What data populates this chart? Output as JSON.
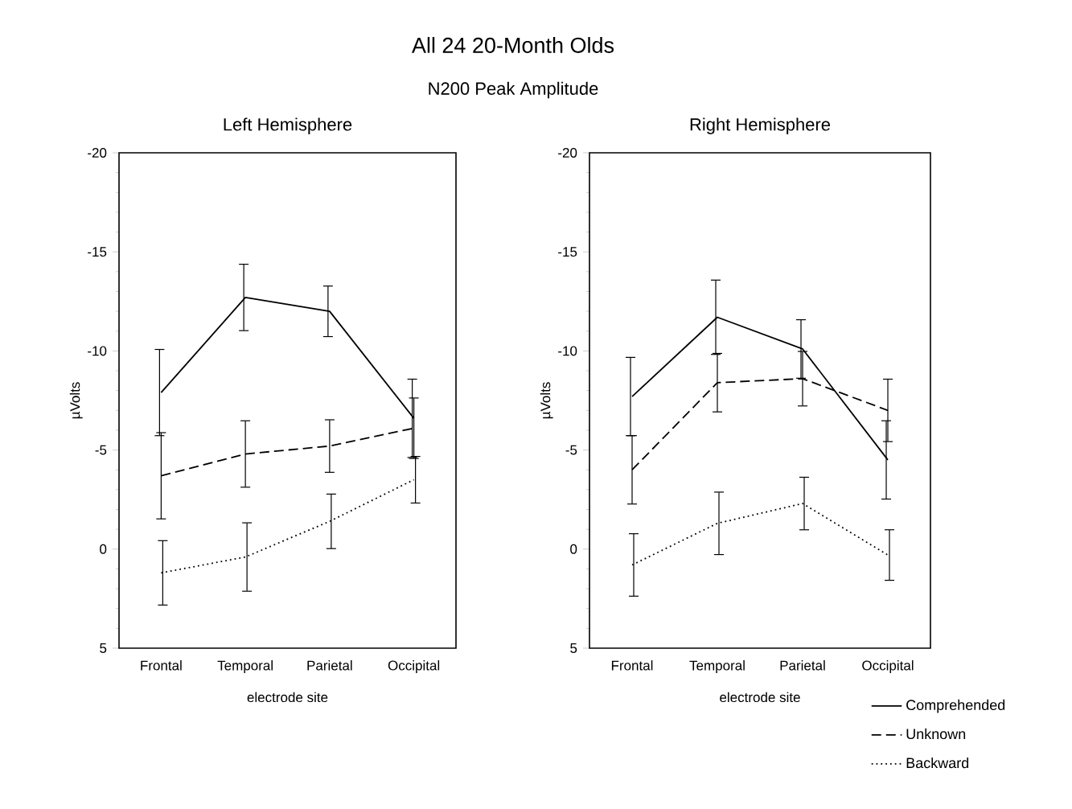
{
  "chart_data": [
    {
      "type": "line",
      "title": "Left Hemisphere",
      "annotations": [
        "All 24 20-Month Olds",
        "N200 Peak Amplitude"
      ],
      "xlabel": "electrode site",
      "ylabel": "µVolts",
      "categories": [
        "Frontal",
        "Temporal",
        "Parietal",
        "Occipital"
      ],
      "ylim": [
        5,
        -20
      ],
      "yticks": [
        -20,
        -15,
        -10,
        -5,
        0,
        5
      ],
      "marker": "none",
      "series": [
        {
          "color": "#000000",
          "line_style": "solid",
          "values": [
            -7.9,
            -12.7,
            -12.0,
            -6.6
          ],
          "errors": [
            2.2,
            1.7,
            1.3,
            2.0
          ]
        },
        {
          "color": "#000000",
          "line_style": "dashed",
          "values": [
            -3.7,
            -4.8,
            -5.2,
            -6.1
          ],
          "errors": [
            2.2,
            1.7,
            1.35,
            1.55
          ]
        },
        {
          "color": "#000000",
          "line_style": "dotted",
          "values": [
            1.2,
            0.4,
            -1.4,
            -3.5
          ],
          "errors": [
            1.65,
            1.75,
            1.4,
            1.2
          ]
        }
      ]
    },
    {
      "type": "line",
      "title": "Right Hemisphere",
      "xlabel": "electrode site",
      "ylabel": "µVolts",
      "categories": [
        "Frontal",
        "Temporal",
        "Parietal",
        "Occipital"
      ],
      "ylim": [
        5,
        -20
      ],
      "yticks": [
        -20,
        -15,
        -10,
        -5,
        0,
        5
      ],
      "marker": "none",
      "legend": "bottom right",
      "series": [
        {
          "name": "Comprehended",
          "color": "#000000",
          "line_style": "solid",
          "values": [
            -7.7,
            -11.7,
            -10.1,
            -4.5
          ],
          "errors": [
            2.0,
            1.9,
            1.5,
            2.0
          ]
        },
        {
          "name": "Unknown",
          "color": "#000000",
          "line_style": "dashed",
          "values": [
            -4.0,
            -8.4,
            -8.6,
            -7.0
          ],
          "errors": [
            1.75,
            1.5,
            1.4,
            1.6
          ]
        },
        {
          "name": "Backward",
          "color": "#000000",
          "line_style": "dotted",
          "values": [
            0.8,
            -1.3,
            -2.3,
            0.3
          ],
          "errors": [
            1.6,
            1.6,
            1.35,
            1.3
          ]
        }
      ]
    }
  ]
}
